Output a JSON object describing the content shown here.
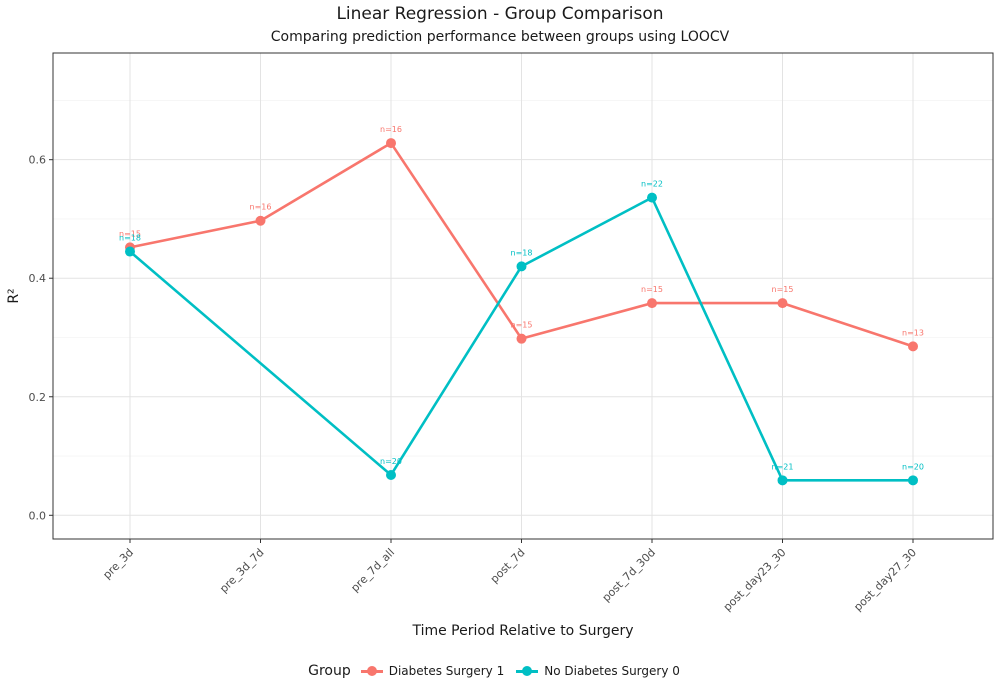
{
  "chart_data": {
    "type": "line",
    "title": "Linear Regression - Group Comparison",
    "subtitle": "Comparing prediction performance between groups using LOOCV",
    "xlabel": "Time Period Relative to Surgery",
    "ylabel": "R²",
    "categories": [
      "pre_3d",
      "pre_3d_7d",
      "pre_7d_all",
      "post_7d",
      "post_7d_30d",
      "post_day23_30",
      "post_day27_30"
    ],
    "ylim": [
      -0.04,
      0.78
    ],
    "yticks": [
      0.0,
      0.2,
      0.4,
      0.6
    ],
    "ytick_labels": [
      "0.0",
      "0.2",
      "0.4",
      "0.6"
    ],
    "grid": true,
    "legend": {
      "title": "Group",
      "position": "bottom"
    },
    "series": [
      {
        "name": "Diabetes Surgery 1",
        "color": "#F8766D",
        "x": [
          "pre_3d",
          "pre_3d_7d",
          "pre_7d_all",
          "post_7d",
          "post_7d_30d",
          "post_day23_30",
          "post_day27_30"
        ],
        "values": [
          0.452,
          0.497,
          0.628,
          0.298,
          0.358,
          0.358,
          0.285
        ],
        "labels": [
          "n=15",
          "n=16",
          "n=16",
          "n=15",
          "n=15",
          "n=15",
          "n=13"
        ]
      },
      {
        "name": "No Diabetes Surgery 0",
        "color": "#00BFC4",
        "x": [
          "pre_3d",
          "pre_7d_all",
          "post_7d",
          "post_7d_30d",
          "post_day23_30",
          "post_day27_30"
        ],
        "values": [
          0.445,
          0.068,
          0.42,
          0.536,
          0.059,
          0.059
        ],
        "labels": [
          "n=18",
          "n=20",
          "n=18",
          "n=22",
          "n=21",
          "n=20"
        ]
      }
    ]
  }
}
